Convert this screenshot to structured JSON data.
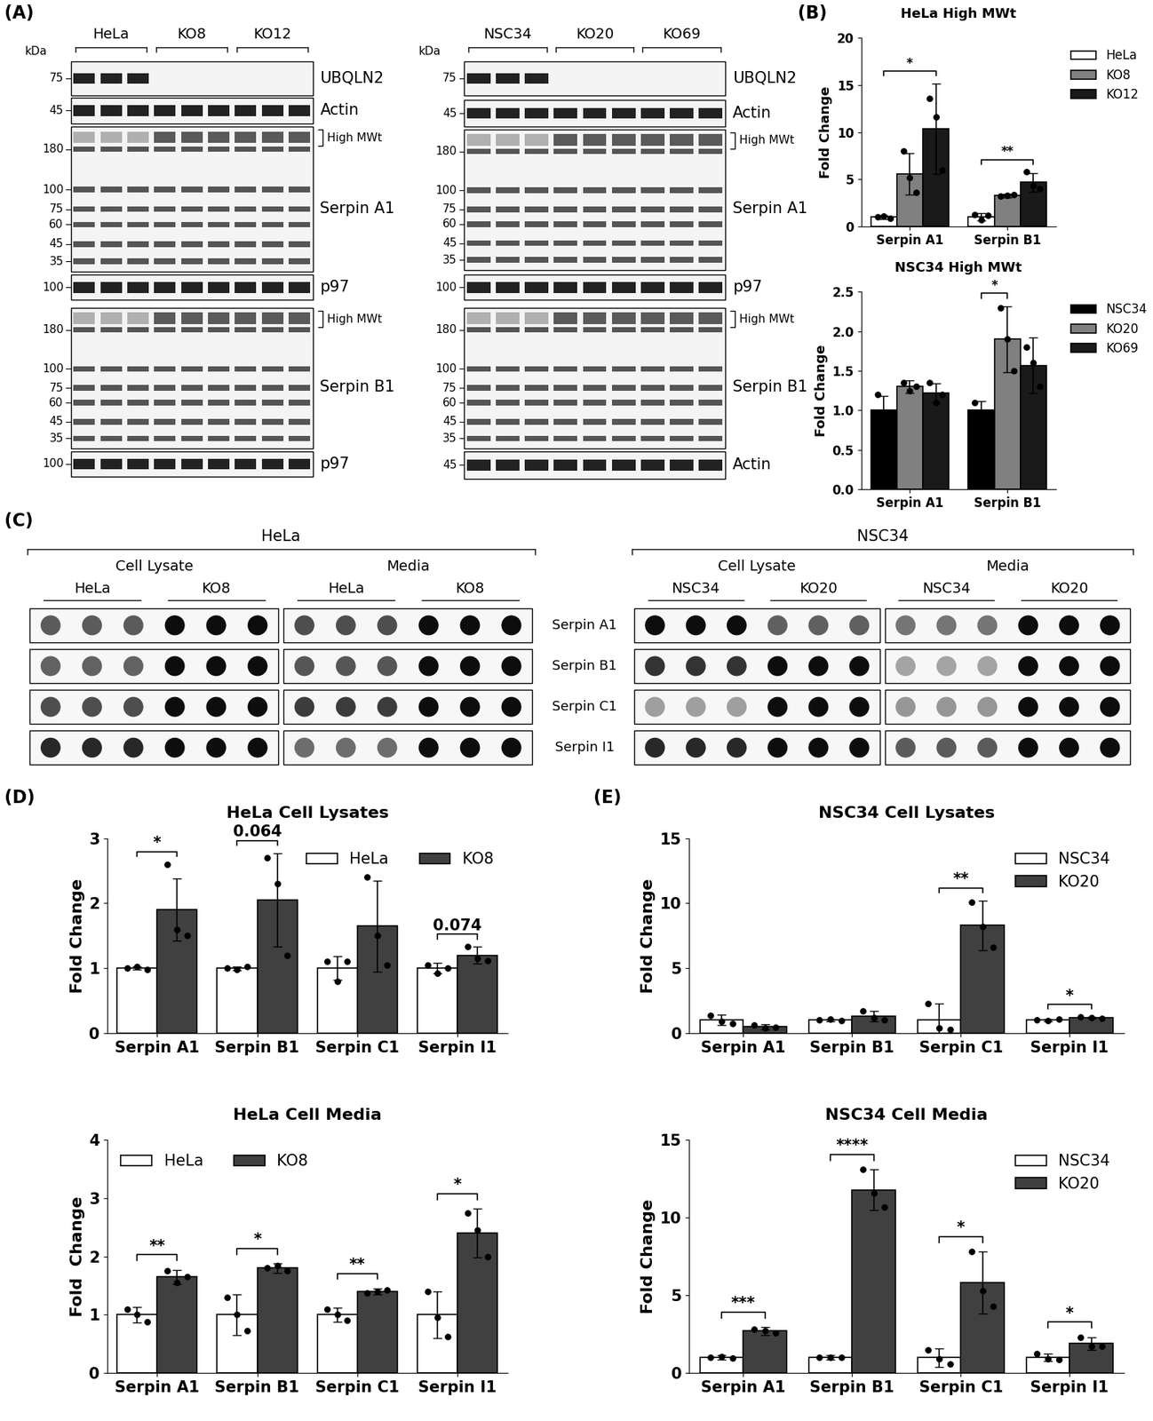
{
  "panel_labels": {
    "A": "(A)",
    "B": "(B)",
    "C": "(C)",
    "D": "(D)",
    "E": "(E)"
  },
  "blots": [
    {
      "kda_label": "kDa",
      "groups": [
        "HeLa",
        "KO8",
        "KO12"
      ],
      "lanes_per_group": 3,
      "strips": [
        {
          "name": "UBQLN2",
          "markers": [
            75
          ]
        },
        {
          "name": "Actin",
          "markers": [
            45
          ]
        },
        {
          "name": "Serpin A1",
          "markers": [
            180,
            100,
            75,
            60,
            45,
            35
          ],
          "bracket": "High MWt"
        },
        {
          "name": "p97",
          "markers": [
            100
          ]
        },
        {
          "name": "Serpin B1",
          "markers": [
            180,
            100,
            75,
            60,
            45,
            35
          ],
          "bracket": "High MWt"
        },
        {
          "name": "p97",
          "markers": [
            100
          ]
        }
      ]
    },
    {
      "kda_label": "kDa",
      "groups": [
        "NSC34",
        "KO20",
        "KO69"
      ],
      "lanes_per_group": 3,
      "strips": [
        {
          "name": "UBQLN2",
          "markers": [
            75
          ]
        },
        {
          "name": "Actin",
          "markers": [
            45
          ]
        },
        {
          "name": "Serpin A1",
          "markers": [
            180,
            100,
            75,
            60,
            45,
            35
          ],
          "bracket": "High MWt"
        },
        {
          "name": "p97",
          "markers": [
            100
          ]
        },
        {
          "name": "Serpin B1",
          "markers": [
            180,
            100,
            75,
            60,
            45,
            35
          ],
          "bracket": "High MWt"
        },
        {
          "name": "Actin",
          "markers": [
            45
          ]
        }
      ]
    }
  ],
  "dot_blots": {
    "rows": [
      "Serpin A1",
      "Serpin B1",
      "Serpin C1",
      "Serpin I1"
    ],
    "dots_per_group": 3,
    "panels": [
      {
        "title": "HeLa",
        "sections": [
          {
            "title": "Cell Lysate",
            "groups": [
              "HeLa",
              "KO8"
            ]
          },
          {
            "title": "Media",
            "groups": [
              "HeLa",
              "KO8"
            ]
          }
        ]
      },
      {
        "title": "NSC34",
        "sections": [
          {
            "title": "Cell Lysate",
            "groups": [
              "NSC34",
              "KO20"
            ]
          },
          {
            "title": "Media",
            "groups": [
              "NSC34",
              "KO20"
            ]
          }
        ]
      }
    ]
  },
  "chart_data": [
    {
      "type": "bar",
      "title": "HeLa High MWt",
      "y_label": "Fold Change",
      "categories": [
        "Serpin A1",
        "Serpin B1"
      ],
      "series": [
        {
          "name": "HeLa",
          "color": "#ffffff",
          "values": [
            1.0,
            1.0
          ],
          "errors": [
            0.2,
            0.4
          ],
          "points": [
            [
              1.0,
              1.1,
              0.9
            ],
            [
              1.3,
              0.7,
              1.2
            ]
          ]
        },
        {
          "name": "KO8",
          "color": "#808080",
          "values": [
            5.6,
            3.3
          ],
          "errors": [
            2.2,
            0.2
          ],
          "points": [
            [
              8.0,
              5.2,
              3.6
            ],
            [
              3.2,
              3.3,
              3.4
            ]
          ]
        },
        {
          "name": "KO12",
          "color": "#1a1a1a",
          "values": [
            10.4,
            4.7
          ],
          "errors": [
            4.8,
            1.0
          ],
          "points": [
            [
              13.6,
              11.6,
              6.0
            ],
            [
              5.8,
              4.3,
              4.0
            ]
          ]
        }
      ],
      "ylim": [
        0,
        20
      ],
      "yticks": [
        0,
        5,
        10,
        15,
        20
      ],
      "legend": "right",
      "annotations": [
        {
          "category": "Serpin A1",
          "from": "HeLa",
          "to": "KO12",
          "text": "*"
        },
        {
          "category": "Serpin B1",
          "from": "HeLa",
          "to": "KO12",
          "text": "**"
        }
      ]
    },
    {
      "type": "bar",
      "title": "NSC34 High MWt",
      "y_label": "Fold Change",
      "categories": [
        "Serpin A1",
        "Serpin B1"
      ],
      "series": [
        {
          "name": "NSC34",
          "color": "#000000",
          "values": [
            1.0,
            1.0
          ],
          "errors": [
            0.18,
            0.12
          ],
          "points": [
            [
              1.2,
              0.9,
              0.9
            ],
            [
              1.1,
              0.95,
              0.95
            ]
          ]
        },
        {
          "name": "KO20",
          "color": "#808080",
          "values": [
            1.3,
            1.9
          ],
          "errors": [
            0.08,
            0.42
          ],
          "points": [
            [
              1.35,
              1.25,
              1.3
            ],
            [
              2.3,
              1.9,
              1.5
            ]
          ]
        },
        {
          "name": "KO69",
          "color": "#1a1a1a",
          "values": [
            1.22,
            1.57
          ],
          "errors": [
            0.12,
            0.35
          ],
          "points": [
            [
              1.35,
              1.1,
              1.2
            ],
            [
              1.8,
              1.6,
              1.3
            ]
          ]
        }
      ],
      "ylim": [
        0,
        2.5
      ],
      "yticks": [
        {
          "value": 0,
          "label": "0.0"
        },
        0.5,
        {
          "value": 1,
          "label": "1.0"
        },
        1.5,
        {
          "value": 2,
          "label": "2.0"
        },
        2.5
      ],
      "legend": "right",
      "annotations": [
        {
          "category": "Serpin B1",
          "from": "NSC34",
          "to": "KO20",
          "text": "*"
        }
      ]
    },
    {
      "type": "bar",
      "title": "HeLa Cell Lysates",
      "y_label": "Fold Change",
      "categories": [
        "Serpin A1",
        "Serpin B1",
        "Serpin C1",
        "Serpin I1"
      ],
      "series": [
        {
          "name": "HeLa",
          "color": "#ffffff",
          "values": [
            1,
            1,
            1,
            1
          ],
          "errors": [
            0.02,
            0.03,
            0.18,
            0.08
          ],
          "points": [
            [
              1.0,
              1.02,
              0.98
            ],
            [
              1.0,
              0.98,
              1.02
            ],
            [
              1.1,
              0.8,
              1.1
            ],
            [
              1.05,
              0.92,
              1.0
            ]
          ]
        },
        {
          "name": "KO8",
          "color": "#404040",
          "values": [
            1.9,
            2.05,
            1.65,
            1.2
          ],
          "errors": [
            0.48,
            0.72,
            0.7,
            0.13
          ],
          "points": [
            [
              2.6,
              1.6,
              1.5
            ],
            [
              2.7,
              2.3,
              1.2
            ],
            [
              2.4,
              1.5,
              1.05
            ],
            [
              1.33,
              1.15,
              1.12
            ]
          ]
        }
      ],
      "ylim": [
        0,
        3
      ],
      "yticks": [
        0,
        1,
        2,
        3
      ],
      "legend": "upper right",
      "annotations": [
        {
          "category": "Serpin A1",
          "from": "HeLa",
          "to": "KO8",
          "text": "*"
        },
        {
          "category": "Serpin B1",
          "from": "HeLa",
          "to": "KO8",
          "text": "0.064"
        },
        {
          "category": "Serpin I1",
          "from": "HeLa",
          "to": "KO8",
          "text": "0.074"
        }
      ]
    },
    {
      "type": "bar",
      "title": "HeLa Cell Media",
      "y_label": "Fold  Change",
      "categories": [
        "Serpin A1",
        "Serpin B1",
        "Serpin C1",
        "Serpin I1"
      ],
      "series": [
        {
          "name": "HeLa",
          "color": "#ffffff",
          "values": [
            1,
            1,
            1,
            1
          ],
          "errors": [
            0.13,
            0.35,
            0.12,
            0.4
          ],
          "points": [
            [
              1.1,
              1.0,
              0.88
            ],
            [
              1.3,
              1.0,
              0.72
            ],
            [
              1.1,
              1.0,
              0.9
            ],
            [
              1.4,
              0.95,
              0.62
            ]
          ]
        },
        {
          "name": "KO8",
          "color": "#404040",
          "values": [
            1.65,
            1.8,
            1.4,
            2.4
          ],
          "errors": [
            0.12,
            0.08,
            0.05,
            0.42
          ],
          "points": [
            [
              1.75,
              1.55,
              1.65
            ],
            [
              1.8,
              1.85,
              1.75
            ],
            [
              1.38,
              1.4,
              1.43
            ],
            [
              2.75,
              2.45,
              2.0
            ]
          ]
        }
      ],
      "ylim": [
        0,
        4
      ],
      "yticks": [
        0,
        1,
        2,
        3,
        4
      ],
      "legend": "upper left",
      "annotations": [
        {
          "category": "Serpin A1",
          "from": "HeLa",
          "to": "KO8",
          "text": "**"
        },
        {
          "category": "Serpin B1",
          "from": "HeLa",
          "to": "KO8",
          "text": "*"
        },
        {
          "category": "Serpin C1",
          "from": "HeLa",
          "to": "KO8",
          "text": "**"
        },
        {
          "category": "Serpin I1",
          "from": "HeLa",
          "to": "KO8",
          "text": "*"
        }
      ]
    },
    {
      "type": "bar",
      "title": "NSC34 Cell Lysates",
      "y_label": "Fold Change",
      "categories": [
        "Serpin A1",
        "Serpin B1",
        "Serpin C1",
        "Serpin I1"
      ],
      "series": [
        {
          "name": "NSC34",
          "color": "#ffffff",
          "values": [
            1,
            1,
            1,
            1
          ],
          "errors": [
            0.4,
            0.1,
            1.3,
            0.1
          ],
          "points": [
            [
              1.35,
              0.9,
              0.75
            ],
            [
              1.0,
              1.05,
              0.95
            ],
            [
              2.3,
              0.4,
              0.3
            ],
            [
              1.0,
              0.95,
              1.05
            ]
          ]
        },
        {
          "name": "KO20",
          "color": "#404040",
          "values": [
            0.5,
            1.3,
            8.3,
            1.2
          ],
          "errors": [
            0.2,
            0.4,
            1.9,
            0.05
          ],
          "points": [
            [
              0.65,
              0.4,
              0.45
            ],
            [
              1.7,
              1.2,
              1.0
            ],
            [
              10.1,
              8.2,
              6.6
            ],
            [
              1.25,
              1.2,
              1.15
            ]
          ]
        }
      ],
      "ylim": [
        0,
        15
      ],
      "yticks": [
        0,
        5,
        10,
        15
      ],
      "legend": "upper right",
      "annotations": [
        {
          "category": "Serpin C1",
          "from": "NSC34",
          "to": "KO20",
          "text": "**"
        },
        {
          "category": "Serpin I1",
          "from": "NSC34",
          "to": "KO20",
          "text": "*"
        }
      ]
    },
    {
      "type": "bar",
      "title": "NSC34 Cell Media",
      "y_label": "Fold Change",
      "categories": [
        "Serpin A1",
        "Serpin B1",
        "Serpin C1",
        "Serpin I1"
      ],
      "series": [
        {
          "name": "NSC34",
          "color": "#ffffff",
          "values": [
            1,
            1,
            1,
            1
          ],
          "errors": [
            0.15,
            0.15,
            0.6,
            0.25
          ],
          "points": [
            [
              1.0,
              1.05,
              0.95
            ],
            [
              1.0,
              1.0,
              1.0
            ],
            [
              1.5,
              0.9,
              0.6
            ],
            [
              1.25,
              0.9,
              0.85
            ]
          ]
        },
        {
          "name": "KO20",
          "color": "#404040",
          "values": [
            2.7,
            11.8,
            5.8,
            1.9
          ],
          "errors": [
            0.25,
            1.3,
            2.0,
            0.4
          ],
          "points": [
            [
              2.8,
              2.7,
              2.6
            ],
            [
              13.1,
              11.6,
              10.7
            ],
            [
              7.8,
              5.3,
              4.3
            ],
            [
              2.3,
              1.7,
              1.7
            ]
          ]
        }
      ],
      "ylim": [
        0,
        15
      ],
      "yticks": [
        0,
        5,
        10,
        15
      ],
      "legend": "upper right",
      "annotations": [
        {
          "category": "Serpin A1",
          "from": "NSC34",
          "to": "KO20",
          "text": "***"
        },
        {
          "category": "Serpin B1",
          "from": "NSC34",
          "to": "KO20",
          "text": "****"
        },
        {
          "category": "Serpin C1",
          "from": "NSC34",
          "to": "KO20",
          "text": "*"
        },
        {
          "category": "Serpin I1",
          "from": "NSC34",
          "to": "KO20",
          "text": "*"
        }
      ]
    }
  ]
}
